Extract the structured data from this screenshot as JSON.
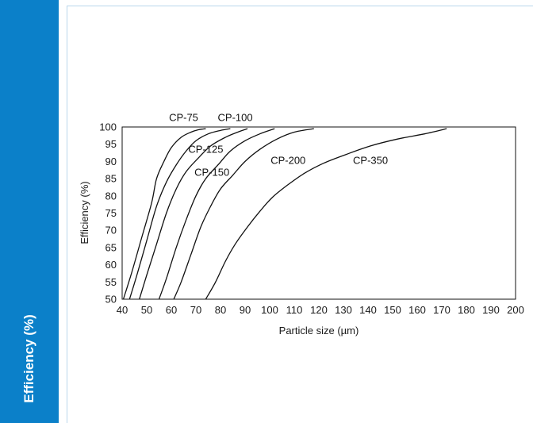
{
  "sidebar": {
    "label": "Efficiency (%)",
    "color": "#0b80c9"
  },
  "chart_data": {
    "type": "line",
    "xlabel": "Particle size (µm)",
    "ylabel": "Efficiency (%)",
    "xlim": [
      40,
      200
    ],
    "ylim": [
      50,
      100
    ],
    "xticks": [
      "40",
      "50",
      "60",
      "70",
      "80",
      "90",
      "100",
      "110",
      "120",
      "130",
      "140",
      "150",
      "160",
      "170",
      "180",
      "190",
      "200"
    ],
    "yticks": [
      "50",
      "55",
      "60",
      "65",
      "70",
      "75",
      "80",
      "85",
      "90",
      "95",
      "100"
    ],
    "grid": false,
    "series": [
      {
        "name": "CP-75",
        "x": [
          40.5,
          44,
          48,
          52,
          54,
          57,
          60,
          64,
          68,
          71,
          74
        ],
        "y": [
          50,
          58,
          68,
          78,
          85,
          90,
          94,
          97,
          98.5,
          99.2,
          99.5
        ]
      },
      {
        "name": "CP-100",
        "x": [
          43,
          46,
          50,
          54,
          58,
          62,
          66,
          70,
          75,
          80,
          84
        ],
        "y": [
          50,
          57,
          67,
          77,
          84,
          89,
          93,
          96,
          98,
          99,
          99.5
        ]
      },
      {
        "name": "CP-125",
        "x": [
          47,
          50,
          54,
          58,
          62,
          66,
          71,
          76,
          82,
          87,
          91
        ],
        "y": [
          50,
          57,
          66,
          75,
          82,
          87,
          91,
          94.5,
          97,
          98.5,
          99.5
        ]
      },
      {
        "name": "CP-150",
        "x": [
          55,
          58,
          62,
          66,
          70,
          74,
          79,
          84,
          90,
          96,
          102
        ],
        "y": [
          50,
          56,
          65,
          73,
          80,
          85,
          89,
          93,
          96,
          98,
          99.5
        ]
      },
      {
        "name": "CP-200",
        "x": [
          61,
          64,
          68,
          72,
          76,
          80,
          85,
          90,
          96,
          103,
          110,
          118
        ],
        "y": [
          50,
          55,
          63,
          71,
          77,
          82,
          86,
          90,
          93.5,
          96.5,
          98.5,
          99.5
        ]
      },
      {
        "name": "CP-350",
        "x": [
          74,
          78,
          82,
          86,
          91,
          96,
          101,
          107,
          114,
          122,
          131,
          141,
          152,
          163,
          172
        ],
        "y": [
          50,
          55,
          61,
          66,
          71,
          75.5,
          79.5,
          83,
          86.5,
          89.5,
          92,
          94.5,
          96.5,
          98,
          99.5
        ]
      }
    ],
    "curve_labels": [
      {
        "text": "CP-75",
        "x": 65,
        "y": 101.7
      },
      {
        "text": "CP-100",
        "x": 86,
        "y": 101.7
      },
      {
        "text": "CP-125",
        "x": 74,
        "y": 92.5
      },
      {
        "text": "CP-150",
        "x": 76.5,
        "y": 85.8
      },
      {
        "text": "CP-200",
        "x": 107.5,
        "y": 89.3
      },
      {
        "text": "CP-350",
        "x": 141,
        "y": 89.3
      }
    ]
  }
}
